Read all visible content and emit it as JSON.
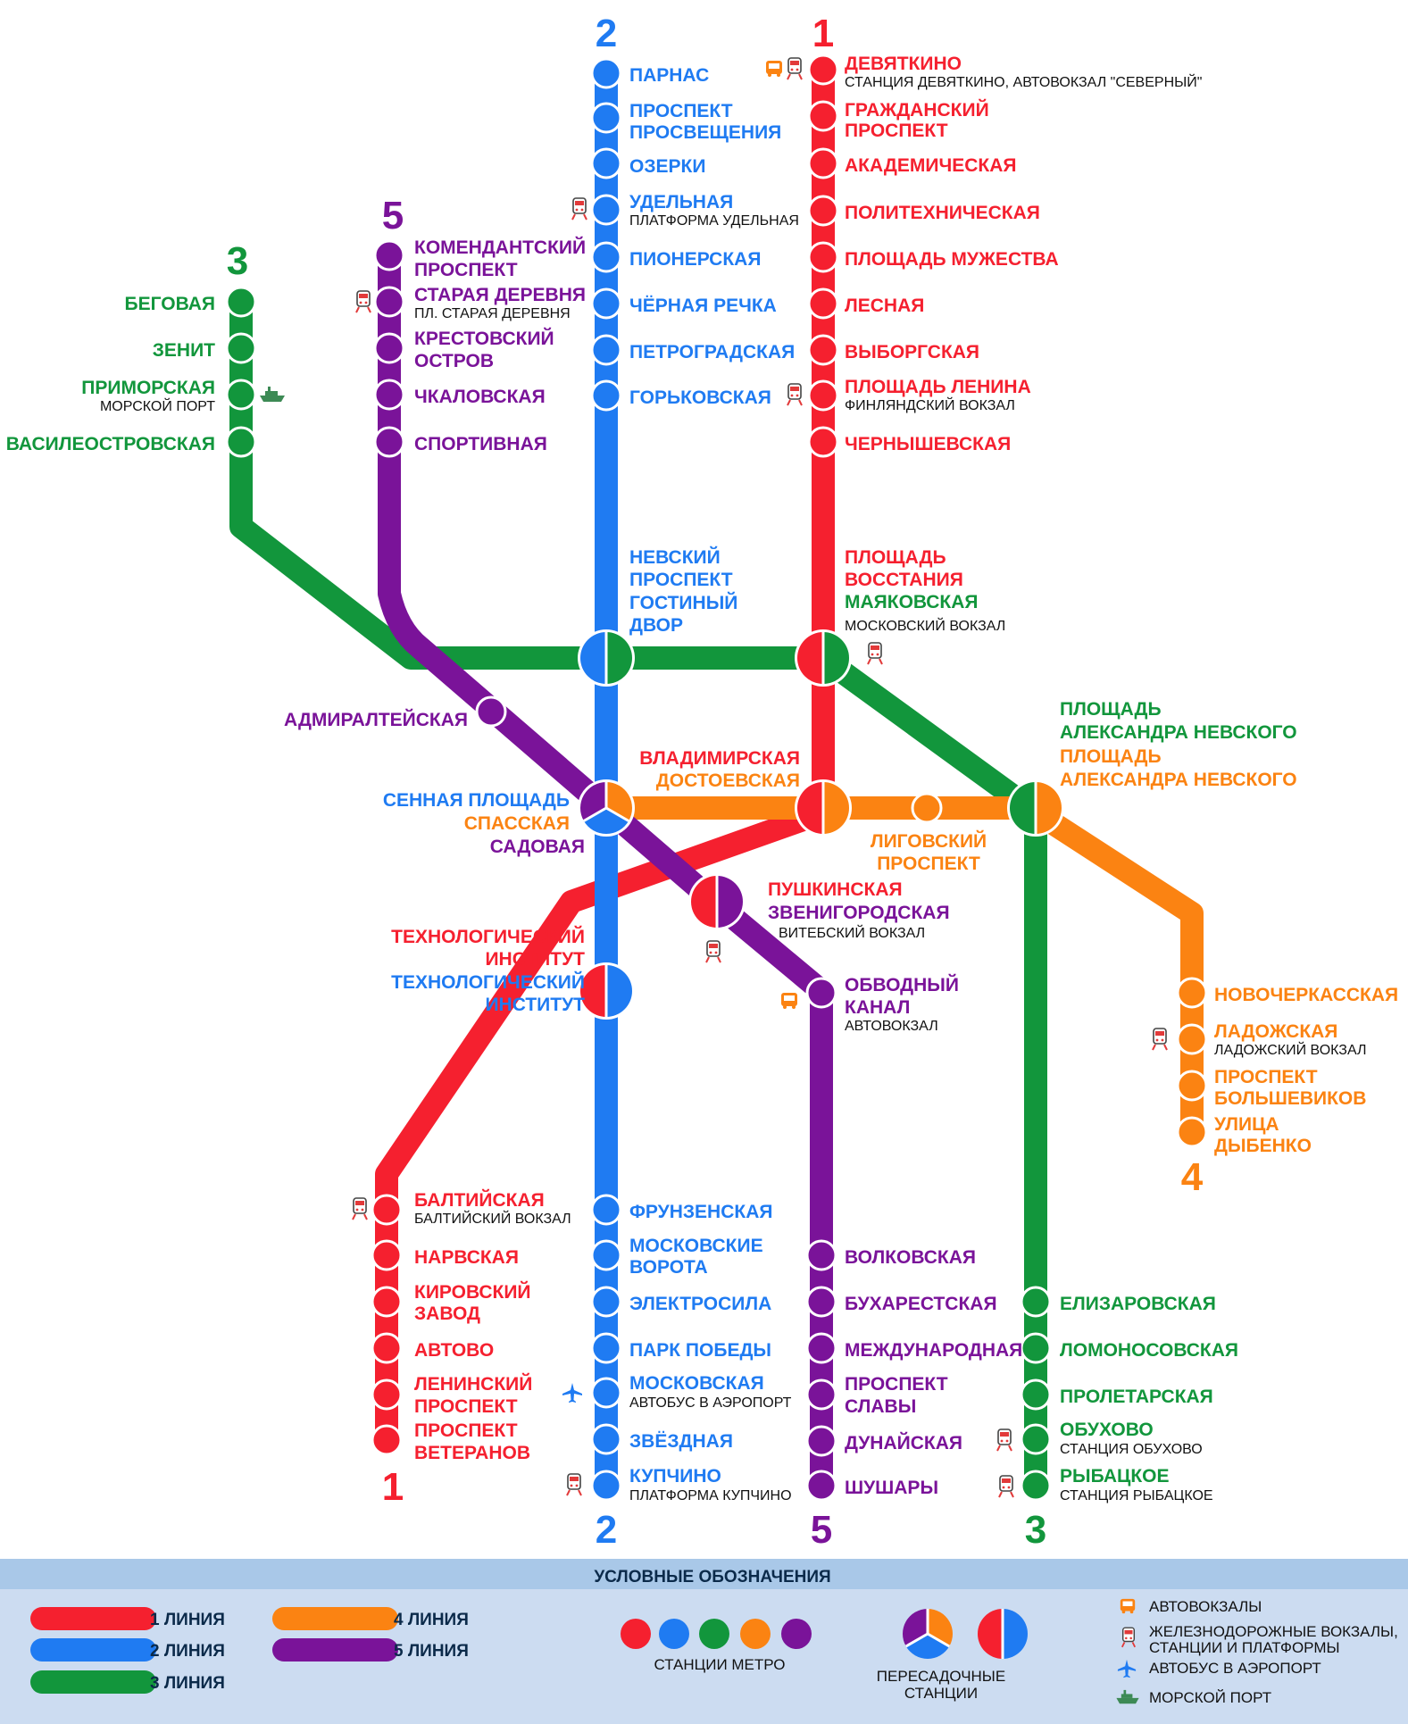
{
  "colors": {
    "line1": "#f5202f",
    "line2": "#1f7bf2",
    "line3": "#12963c",
    "line4": "#fb8312",
    "line5": "#7a1399",
    "legend_bg": "#ccdcf1",
    "legend_bar": "#a9c8e8"
  },
  "line_numbers": {
    "l1": "1",
    "l2": "2",
    "l3": "3",
    "l4": "4",
    "l5": "5"
  },
  "stations": {
    "devyatkino": "ДЕВЯТКИНО",
    "devyatkino_sub": "СТАНЦИЯ ДЕВЯТКИНО, АВТОВОКЗАЛ \"СЕВЕРНЫЙ\"",
    "grazhdansky_1": "ГРАЖДАНСКИЙ",
    "grazhdansky_2": "ПРОСПЕКТ",
    "akademicheskaya": "АКАДЕМИЧЕСКАЯ",
    "politekhnicheskaya": "ПОЛИТЕХНИЧЕСКАЯ",
    "pl_muzhestva": "ПЛОЩАДЬ МУЖЕСТВА",
    "lesnaya": "ЛЕСНАЯ",
    "vyborgskaya": "ВЫБОРГСКАЯ",
    "pl_lenina": "ПЛОЩАДЬ ЛЕНИНА",
    "pl_lenina_sub": "ФИНЛЯНДСКИЙ ВОКЗАЛ",
    "chernyshevskaya": "ЧЕРНЫШЕВСКАЯ",
    "pl_vosstaniya_1": "ПЛОЩАДЬ",
    "pl_vosstaniya_2": "ВОССТАНИЯ",
    "mayakovskaya": "МАЯКОВСКАЯ",
    "mayakovskaya_sub": "МОСКОВСКИЙ ВОКЗАЛ",
    "vladimirskaya": "ВЛАДИМИРСКАЯ",
    "dostoevskaya": "ДОСТОЕВСКАЯ",
    "pushkinskaya": "ПУШКИНСКАЯ",
    "zvenigorodskaya": "ЗВЕНИГОРОДСКАЯ",
    "zvenigorodskaya_sub": "ВИТЕБСКИЙ ВОКЗАЛ",
    "tekhnolog_red_1": "ТЕХНОЛОГИЧЕСКИЙ",
    "tekhnolog_red_2": "ИНСТИТУТ",
    "tekhnolog_blue_1": "ТЕХНОЛОГИЧЕСКИЙ",
    "tekhnolog_blue_2": "ИНСТИТУТ",
    "baltiyskaya": "БАЛТИЙСКАЯ",
    "baltiyskaya_sub": "БАЛТИЙСКИЙ ВОКЗАЛ",
    "narvskaya": "НАРВСКАЯ",
    "kirovsky_1": "КИРОВСКИЙ",
    "kirovsky_2": "ЗАВОД",
    "avtovo": "АВТОВО",
    "leninsky_1": "ЛЕНИНСКИЙ",
    "leninsky_2": "ПРОСПЕКТ",
    "veteranov_1": "ПРОСПЕКТ",
    "veteranov_2": "ВЕТЕРАНОВ",
    "parnas": "ПАРНАС",
    "prosvescheniya_1": "ПРОСПЕКТ",
    "prosvescheniya_2": "ПРОСВЕЩЕНИЯ",
    "ozerki": "ОЗЕРКИ",
    "udelnaya": "УДЕЛЬНАЯ",
    "udelnaya_sub": "ПЛАТФОРМА УДЕЛЬНАЯ",
    "pionerskaya": "ПИОНЕРСКАЯ",
    "chernaya_rechka": "ЧЁРНАЯ РЕЧКА",
    "petrogradskaya": "ПЕТРОГРАДСКАЯ",
    "gorkovskaya": "ГОРЬКОВСКАЯ",
    "nevsky_1": "НЕВСКИЙ",
    "nevsky_2": "ПРОСПЕКТ",
    "gostiny_1": "ГОСТИНЫЙ",
    "gostiny_2": "ДВОР",
    "sennaya": "СЕННАЯ ПЛОЩАДЬ",
    "spasskaya": "СПАССКАЯ",
    "sadovaya": "САДОВАЯ",
    "frunzenskaya": "ФРУНЗЕНСКАЯ",
    "mosk_vorota_1": "МОСКОВСКИЕ",
    "mosk_vorota_2": "ВОРОТА",
    "elektrosila": "ЭЛЕКТРОСИЛА",
    "park_pobedy": "ПАРК ПОБЕДЫ",
    "moskovskaya": "МОСКОВСКАЯ",
    "moskovskaya_sub": "АВТОБУС В АЭРОПОРТ",
    "zvezdnaya": "ЗВЁЗДНАЯ",
    "kupchino": "КУПЧИНО",
    "kupchino_sub": "ПЛАТФОРМА КУПЧИНО",
    "begovaya": "БЕГОВАЯ",
    "zenit": "ЗЕНИТ",
    "primorskaya": "ПРИМОРСКАЯ",
    "primorskaya_sub": "МОРСКОЙ ПОРТ",
    "vasileostrovskaya": "ВАСИЛЕОСТРОВСКАЯ",
    "pl_al_nevskogo_g1": "ПЛОЩАДЬ",
    "pl_al_nevskogo_g2": "АЛЕКСАНДРА НЕВСКОГО",
    "pl_al_nevskogo_o1": "ПЛОЩАДЬ",
    "pl_al_nevskogo_o2": "АЛЕКСАНДРА НЕВСКОГО",
    "elizarovskaya": "ЕЛИЗАРОВСКАЯ",
    "lomonosovskaya": "ЛОМОНОСОВСКАЯ",
    "proletarskaya": "ПРОЛЕТАРСКАЯ",
    "obukhovo": "ОБУХОВО",
    "obukhovo_sub": "СТАНЦИЯ ОБУХОВО",
    "rybatskoe": "РЫБАЦКОЕ",
    "rybatskoe_sub": "СТАНЦИЯ РЫБАЦКОЕ",
    "ligovsky_1": "ЛИГОВСКИЙ",
    "ligovsky_2": "ПРОСПЕКТ",
    "novocherkasskaya": "НОВОЧЕРКАССКАЯ",
    "ladozhskaya": "ЛАДОЖСКАЯ",
    "ladozhskaya_sub": "ЛАДОЖСКИЙ ВОКЗАЛ",
    "bolshevikov_1": "ПРОСПЕКТ",
    "bolshevikov_2": "БОЛЬШЕВИКОВ",
    "dybenko_1": "УЛИЦА",
    "dybenko_2": "ДЫБЕНКО",
    "komendantsky_1": "КОМЕНДАНТСКИЙ",
    "komendantsky_2": "ПРОСПЕКТ",
    "staraya_derevnya": "СТАРАЯ ДЕРЕВНЯ",
    "staraya_derevnya_sub": "ПЛ. СТАРАЯ ДЕРЕВНЯ",
    "krestovsky_1": "КРЕСТОВСКИЙ",
    "krestovsky_2": "ОСТРОВ",
    "chkalovskaya": "ЧКАЛОВСКАЯ",
    "sportivnaya": "СПОРТИВНАЯ",
    "admiralteyskaya": "АДМИРАЛТЕЙСКАЯ",
    "obvodny_1": "ОБВОДНЫЙ",
    "obvodny_2": "КАНАЛ",
    "obvodny_sub": "АВТОВОКЗАЛ",
    "volkovskaya": "ВОЛКОВСКАЯ",
    "bukharestskaya": "БУХАРЕСТСКАЯ",
    "mezhdunarodnaya": "МЕЖДУНАРОДНАЯ",
    "slavy_1": "ПРОСПЕКТ",
    "slavy_2": "СЛАВЫ",
    "dunayskaya": "ДУНАЙСКАЯ",
    "shushary": "ШУШАРЫ"
  },
  "legend": {
    "title": "УСЛОВНЫЕ ОБОЗНАЧЕНИЯ",
    "line1": "1 ЛИНИЯ",
    "line2": "2 ЛИНИЯ",
    "line3": "3 ЛИНИЯ",
    "line4": "4 ЛИНИЯ",
    "line5": "5 ЛИНИЯ",
    "metro_stations": "СТАНЦИИ МЕТРО",
    "transfer_1": "ПЕРЕСАДОЧНЫЕ",
    "transfer_2": "СТАНЦИИ",
    "bus_stations": "АВТОВОКЗАЛЫ",
    "rail_1": "ЖЕЛЕЗНОДОРОЖНЫЕ ВОКЗАЛЫ,",
    "rail_2": "СТАНЦИИ И ПЛАТФОРМЫ",
    "airport_bus": "АВТОБУС В АЭРОПОРТ",
    "sea_port": "МОРСКОЙ ПОРТ"
  },
  "icons": {
    "bus": "bus-icon",
    "train": "train-icon",
    "plane": "airplane-icon",
    "ship": "ship-icon"
  }
}
